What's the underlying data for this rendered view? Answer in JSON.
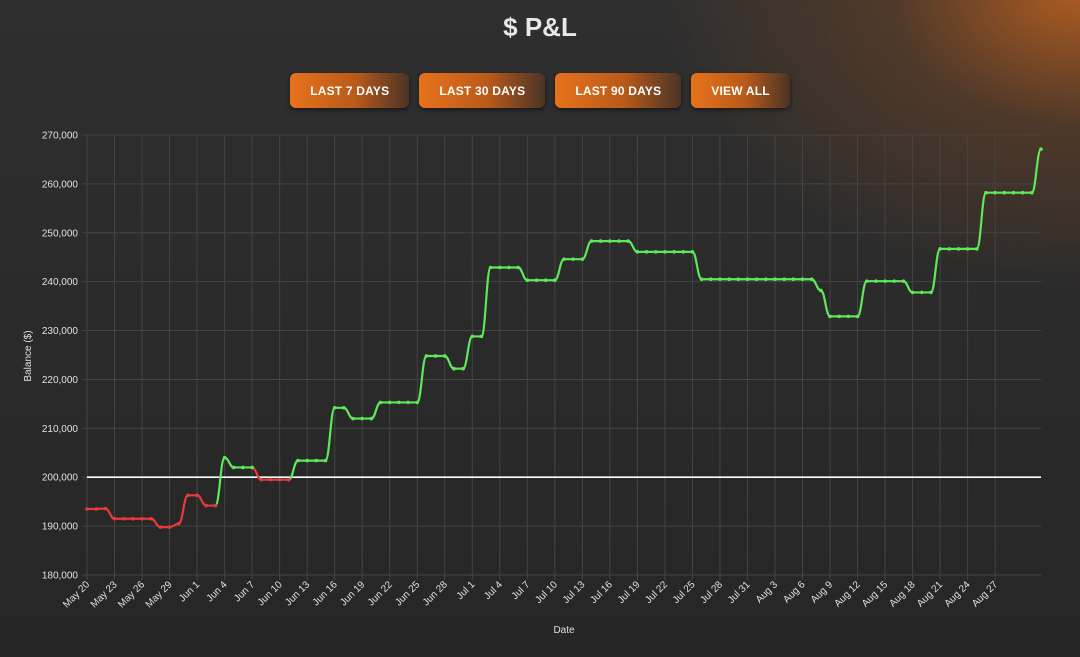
{
  "page": {
    "title": "$ P&L"
  },
  "buttons": {
    "last7": "LAST 7 DAYS",
    "last30": "LAST 30 DAYS",
    "last90": "LAST 90 DAYS",
    "all": "VIEW ALL"
  },
  "colors": {
    "up": "#5ee85a",
    "down": "#e83a3a",
    "baseline": "#ffffff",
    "grid": "#444444",
    "accent": "#e8721c"
  },
  "chart_data": {
    "type": "line",
    "xlabel": "Date",
    "ylabel": "Balance ($)",
    "ylim": [
      180000,
      270000
    ],
    "yticks": [
      "180,000",
      "190,000",
      "200,000",
      "210,000",
      "220,000",
      "230,000",
      "240,000",
      "250,000",
      "260,000",
      "270,000"
    ],
    "xticks": [
      "May 20",
      "May 23",
      "May 26",
      "May 29",
      "Jun 1",
      "Jun 4",
      "Jun 7",
      "Jun 10",
      "Jun 13",
      "Jun 16",
      "Jun 19",
      "Jun 22",
      "Jun 25",
      "Jun 28",
      "Jul 1",
      "Jul 4",
      "Jul 7",
      "Jul 10",
      "Jul 13",
      "Jul 16",
      "Jul 19",
      "Jul 22",
      "Jul 25",
      "Jul 28",
      "Jul 31",
      "Aug 3",
      "Aug 6",
      "Aug 9",
      "Aug 12",
      "Aug 15",
      "Aug 18",
      "Aug 21",
      "Aug 24",
      "Aug 27"
    ],
    "baseline": 200000,
    "grid": true,
    "series": [
      {
        "values": [
          193500,
          193500,
          193600,
          191500,
          191500,
          191500,
          191500,
          191500,
          189800,
          189800,
          190500,
          196300,
          196300,
          194200,
          194200,
          204000,
          202000,
          202000,
          202000,
          199500,
          199500,
          199500,
          199500,
          203400,
          203400,
          203400,
          203400,
          214200,
          214200,
          212000,
          212000,
          212000,
          215300,
          215300,
          215300,
          215300,
          215300,
          224800,
          224800,
          224800,
          222200,
          222200,
          228800,
          228800,
          242900,
          242900,
          242900,
          242900,
          240300,
          240300,
          240300,
          240300,
          244600,
          244600,
          244600,
          248300,
          248300,
          248300,
          248300,
          248300,
          246100,
          246100,
          246100,
          246100,
          246100,
          246100,
          246100,
          240500,
          240500,
          240500,
          240500,
          240500,
          240500,
          240500,
          240500,
          240500,
          240500,
          240500,
          240500,
          240500,
          238200,
          232900,
          232900,
          232900,
          232900,
          240100,
          240100,
          240100,
          240100,
          240100,
          237800,
          237800,
          237800,
          246700,
          246700,
          246700,
          246700,
          246700,
          258200,
          258200,
          258200,
          258200,
          258200,
          258200,
          267100
        ]
      }
    ]
  }
}
